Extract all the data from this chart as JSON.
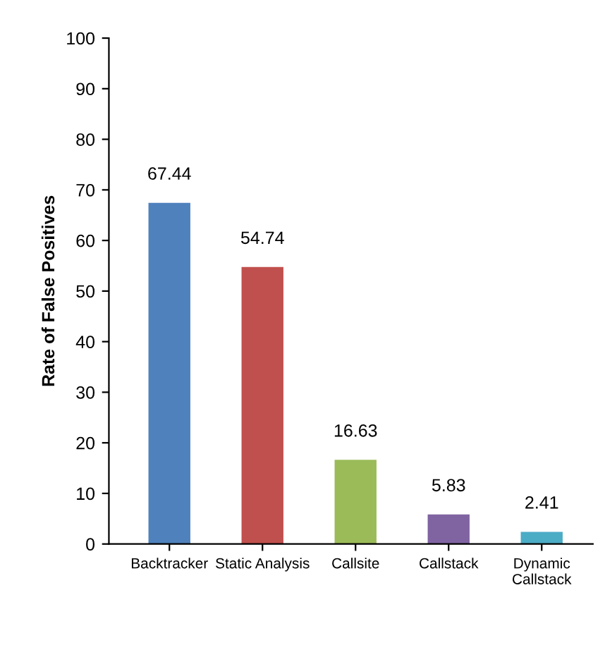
{
  "chart_data": {
    "type": "bar",
    "ylabel": "Rate of False Positives",
    "categories": [
      "Backtracker",
      "Static Analysis",
      "Callsite",
      "Callstack",
      "Dynamic\nCallstack"
    ],
    "values": [
      67.44,
      54.74,
      16.63,
      5.83,
      2.41
    ],
    "colors": [
      "#4f81bd",
      "#c0504d",
      "#9bbb59",
      "#8064a2",
      "#4bacc6"
    ],
    "ylim": [
      0,
      100
    ],
    "yticks": [
      0,
      10,
      20,
      30,
      40,
      50,
      60,
      70,
      80,
      90,
      100
    ],
    "data_labels": true,
    "grid": false,
    "legend": false
  }
}
